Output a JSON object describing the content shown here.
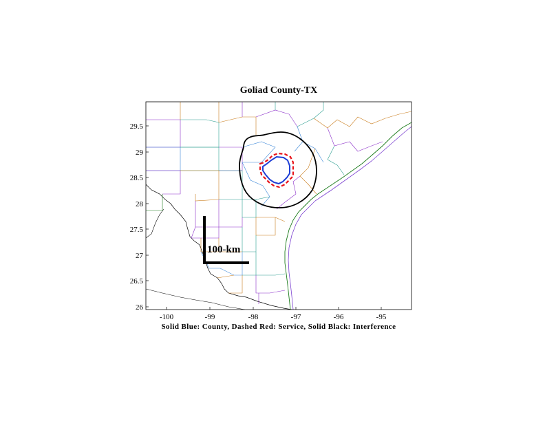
{
  "title": "Goliad County-TX",
  "caption": "Solid Blue: County, Dashed Red: Service, Solid Black: Interference",
  "scale_bar_label": "100-km",
  "x_ticks": [
    "-100",
    "-99",
    "-98",
    "-97",
    "-96",
    "-95"
  ],
  "y_ticks": [
    "29.5",
    "29",
    "28.5",
    "28",
    "27.5",
    "27",
    "26.5",
    "26"
  ],
  "colors": {
    "county": "#1f3fd6",
    "service": "#e8141a",
    "interference": "#000000",
    "frame": "#000000"
  }
}
